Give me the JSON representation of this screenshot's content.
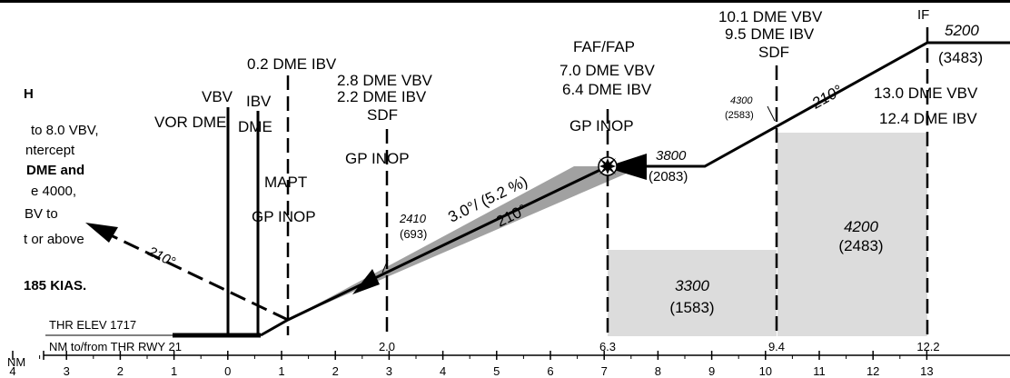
{
  "colors": {
    "ink": "#000000",
    "shade": "#dcdcdc",
    "gp_wedge": "#8a8a8a",
    "background": "#ffffff"
  },
  "icons": {
    "faf_marker": "maltese-cross-icon"
  },
  "fixes": {
    "if": {
      "label": "IF",
      "altitude": "5200",
      "height": "(3483)"
    },
    "sdf_9_4": {
      "vbv": "10.1 DME VBV",
      "ibv": "9.5 DME IBV",
      "type": "SDF",
      "crossing_alt": "4300",
      "crossing_height": "(2583)"
    },
    "faf": {
      "type": "FAF/FAP",
      "vbv": "7.0 DME VBV",
      "ibv": "6.4 DME IBV",
      "status": "GP INOP",
      "altitude": "3800",
      "height": "(2083)"
    },
    "sdf_2_0": {
      "vbv": "2.8 DME VBV",
      "ibv": "2.2 DME IBV",
      "type": "SDF",
      "status": "GP INOP",
      "crossing_alt": "2410",
      "crossing_height": "(693)"
    },
    "mapt": {
      "ibv": "0.2 DME IBV",
      "type": "MAPT",
      "status": "GP INOP"
    },
    "threshold": {
      "vbv": "VBV",
      "vor_dme": "VOR DME",
      "ibv": "IBV",
      "dme": "DME"
    },
    "if_dme": {
      "vbv": "13.0 DME VBV",
      "ibv": "12.4 DME IBV"
    }
  },
  "glidepath": {
    "angle": "3.0°/ (5.2 %)",
    "course": "210°"
  },
  "inbound_course": "210°",
  "missed_approach": {
    "course": "210°",
    "lines": [
      "H",
      "to 8.0 VBV,",
      "ntercept",
      "DME and",
      "e 4000,",
      "BV to",
      "t or above",
      "",
      "185 KIAS."
    ]
  },
  "minimum_altitudes": [
    {
      "alt": "3300",
      "height": "(1583)"
    },
    {
      "alt": "4200",
      "height": "(2483)"
    }
  ],
  "threshold_elev": "THR ELEV 1717",
  "nm_scale": {
    "label": "NM to/from THR RWY 21",
    "unit": "NM",
    "marked_distances": [
      "2.0",
      "6.3",
      "9.4",
      "12.2"
    ],
    "ticks": [
      "4",
      "3",
      "2",
      "1",
      "0",
      "1",
      "2",
      "3",
      "4",
      "5",
      "6",
      "7",
      "8",
      "9",
      "10",
      "11",
      "12",
      "13"
    ]
  }
}
